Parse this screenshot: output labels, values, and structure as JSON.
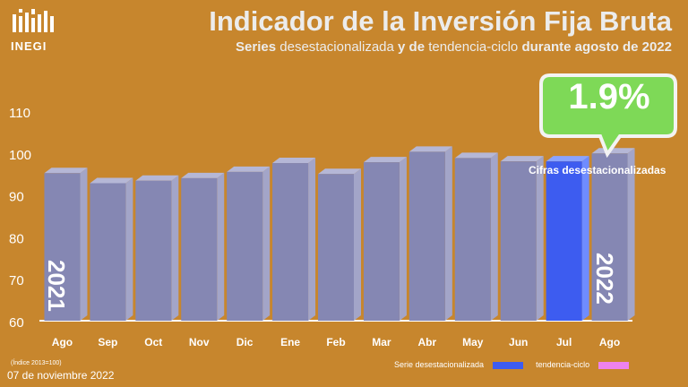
{
  "header": {
    "logo_text": "INEGI",
    "title": "Indicador de la Inversión Fija Bruta",
    "subtitle_part1": "Series ",
    "subtitle_part2": "desestacionalizada",
    "subtitle_part3": " y de ",
    "subtitle_part4": "tendencia-ciclo",
    "subtitle_part5": " durante agosto de 2022"
  },
  "highlight": {
    "value": "1.9%",
    "caption": "Cifras desestacionalizadas",
    "bubble_color": "#7ed957"
  },
  "footer": {
    "index_note": "(Índice 2013=100)",
    "date": "07 de noviembre 2022"
  },
  "legend": {
    "series1_label": "Serie desestacionalizada",
    "series1_color": "#3d5cf0",
    "series2_label": "tendencia-ciclo",
    "series2_color": "#ee82ee"
  },
  "years": {
    "left": "2021",
    "right": "2022"
  },
  "chart_data": {
    "type": "bar",
    "categories": [
      "Ago",
      "Sep",
      "Oct",
      "Nov",
      "Dic",
      "Ene",
      "Feb",
      "Mar",
      "Abr",
      "May",
      "Jun",
      "Jul",
      "Ago"
    ],
    "yticks": [
      60,
      70,
      80,
      90,
      100,
      110
    ],
    "ylim": [
      60,
      110
    ],
    "series": [
      {
        "values": [
          95.2,
          92.8,
          93.4,
          94.0,
          95.5,
          97.6,
          95.0,
          97.8,
          100.3,
          98.8,
          98.0,
          98.0,
          99.9
        ]
      }
    ],
    "highlight_index": 11,
    "bar_color": "#8587b3",
    "highlight_color": "#3d5cf0"
  }
}
